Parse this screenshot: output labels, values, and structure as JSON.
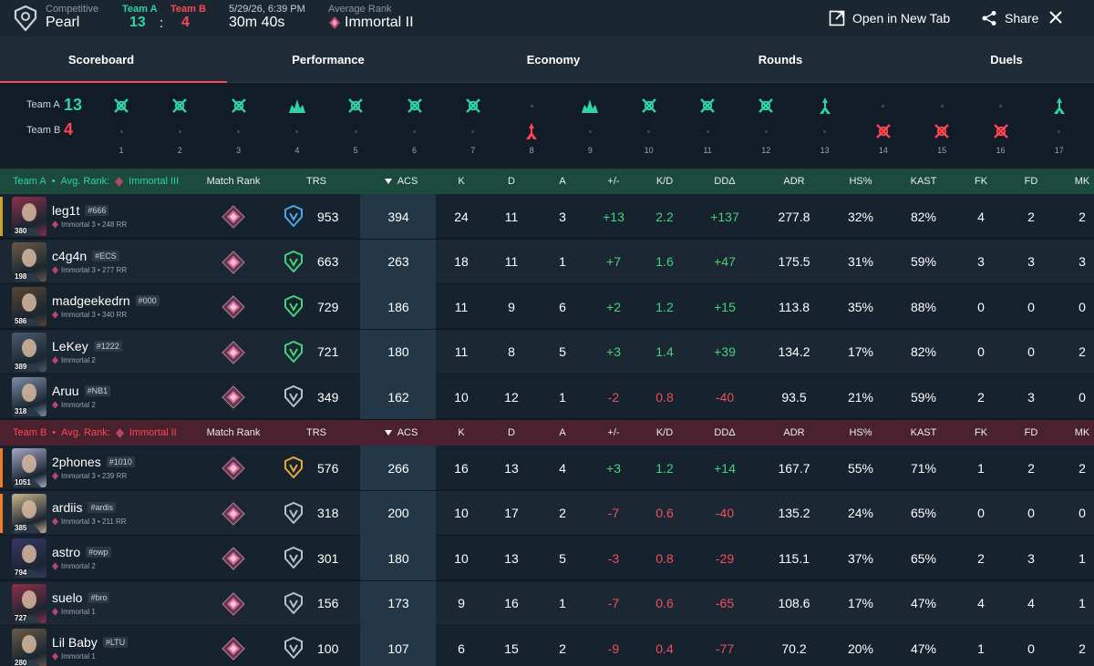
{
  "header": {
    "mode": "Competitive",
    "map": "Pearl",
    "team_a_label": "Team A",
    "team_b_label": "Team B",
    "team_a_score": "13",
    "team_b_score": "4",
    "separator": ":",
    "date": "5/29/26, 6:39 PM",
    "duration": "30m 40s",
    "avg_rank_label": "Average Rank",
    "avg_rank": "Immortal II",
    "open_new_tab": "Open in New Tab",
    "share": "Share"
  },
  "tabs": [
    "Scoreboard",
    "Performance",
    "Economy",
    "Rounds",
    "Duels"
  ],
  "timeline": {
    "team_a_label": "Team A",
    "team_a_score": "13",
    "team_b_label": "Team B",
    "team_b_score": "4",
    "rounds": [
      {
        "n": "1",
        "winner": "A",
        "icon": "defuse-icon"
      },
      {
        "n": "2",
        "winner": "A",
        "icon": "defuse-icon"
      },
      {
        "n": "3",
        "winner": "A",
        "icon": "defuse-icon"
      },
      {
        "n": "4",
        "winner": "A",
        "icon": "elimination-icon"
      },
      {
        "n": "5",
        "winner": "A",
        "icon": "defuse-icon"
      },
      {
        "n": "6",
        "winner": "A",
        "icon": "defuse-icon"
      },
      {
        "n": "7",
        "winner": "A",
        "icon": "defuse-icon"
      },
      {
        "n": "8",
        "winner": "B",
        "icon": "detonate-icon"
      },
      {
        "n": "9",
        "winner": "A",
        "icon": "elimination-icon"
      },
      {
        "n": "10",
        "winner": "A",
        "icon": "defuse-icon"
      },
      {
        "n": "11",
        "winner": "A",
        "icon": "defuse-icon"
      },
      {
        "n": "12",
        "winner": "A",
        "icon": "defuse-icon"
      },
      {
        "n": "13",
        "winner": "A",
        "icon": "detonate-icon"
      },
      {
        "n": "14",
        "winner": "B",
        "icon": "defuse-icon"
      },
      {
        "n": "15",
        "winner": "B",
        "icon": "defuse-icon"
      },
      {
        "n": "16",
        "winner": "B",
        "icon": "defuse-icon"
      },
      {
        "n": "17",
        "winner": "A",
        "icon": "detonate-icon"
      }
    ]
  },
  "columns": [
    "Match Rank",
    "TRS",
    "ACS",
    "K",
    "D",
    "A",
    "+/-",
    "K/D",
    "DDΔ",
    "ADR",
    "HS%",
    "KAST",
    "FK",
    "FD",
    "MK"
  ],
  "team_a": {
    "label": "Team A",
    "avg_prefix": "Avg. Rank:",
    "avg_rank": "Immortal III",
    "color": "#2fd3a4",
    "players": [
      {
        "name": "leg1t",
        "tag": "#666",
        "rank": "Immortal 3 • 248 RR",
        "level": "380",
        "trs": "953",
        "trs_color": "#4aa8e8",
        "acs": "394",
        "k": "24",
        "d": "11",
        "a": "3",
        "pm": "+13",
        "kd": "2.2",
        "dd": "+137",
        "adr": "277.8",
        "hs": "32%",
        "kast": "82%",
        "fk": "4",
        "fd": "2",
        "mk": "2",
        "accent": "#c9a227",
        "av": "#8e2f4a"
      },
      {
        "name": "c4g4n",
        "tag": "#ECS",
        "rank": "Immortal 3 • 277 RR",
        "level": "198",
        "trs": "663",
        "trs_color": "#46d27a",
        "acs": "263",
        "k": "18",
        "d": "11",
        "a": "1",
        "pm": "+7",
        "kd": "1.6",
        "dd": "+47",
        "adr": "175.5",
        "hs": "31%",
        "kast": "59%",
        "fk": "3",
        "fd": "3",
        "mk": "3",
        "av": "#6b5a48"
      },
      {
        "name": "madgeekedrn",
        "tag": "#000",
        "rank": "Immortal 3 • 340 RR",
        "level": "586",
        "trs": "729",
        "trs_color": "#46d27a",
        "acs": "186",
        "k": "11",
        "d": "9",
        "a": "6",
        "pm": "+2",
        "kd": "1.2",
        "dd": "+15",
        "adr": "113.8",
        "hs": "35%",
        "kast": "88%",
        "fk": "0",
        "fd": "0",
        "mk": "0",
        "av": "#5a4636"
      },
      {
        "name": "LeKey",
        "tag": "#1222",
        "rank": "Immortal 2",
        "level": "389",
        "trs": "721",
        "trs_color": "#46d27a",
        "acs": "180",
        "k": "11",
        "d": "8",
        "a": "5",
        "pm": "+3",
        "kd": "1.4",
        "dd": "+39",
        "adr": "134.2",
        "hs": "17%",
        "kast": "82%",
        "fk": "0",
        "fd": "0",
        "mk": "2",
        "av": "#4b5a6e"
      },
      {
        "name": "Aruu",
        "tag": "#NB1",
        "rank": "Immortal 2",
        "level": "318",
        "trs": "349",
        "trs_color": "#b8c2cc",
        "acs": "162",
        "k": "10",
        "d": "12",
        "a": "1",
        "pm": "-2",
        "kd": "0.8",
        "dd": "-40",
        "adr": "93.5",
        "hs": "21%",
        "kast": "59%",
        "fk": "2",
        "fd": "3",
        "mk": "0",
        "av": "#7c8ea8"
      }
    ]
  },
  "team_b": {
    "label": "Team B",
    "avg_prefix": "Avg. Rank:",
    "avg_rank": "Immortal II",
    "color": "#ff4655",
    "players": [
      {
        "name": "2phones",
        "tag": "#1010",
        "rank": "Immortal 3 • 239 RR",
        "level": "1051",
        "trs": "576",
        "trs_color": "#e8a93a",
        "acs": "266",
        "k": "16",
        "d": "13",
        "a": "4",
        "pm": "+3",
        "kd": "1.2",
        "dd": "+14",
        "adr": "167.7",
        "hs": "55%",
        "kast": "71%",
        "fk": "1",
        "fd": "2",
        "mk": "2",
        "accent": "#f47b20",
        "av": "#a8a8c8"
      },
      {
        "name": "ardiis",
        "tag": "#ardis",
        "rank": "Immortal 3 • 211 RR",
        "level": "385",
        "trs": "318",
        "trs_color": "#b8c2cc",
        "acs": "200",
        "k": "10",
        "d": "17",
        "a": "2",
        "pm": "-7",
        "kd": "0.6",
        "dd": "-40",
        "adr": "135.2",
        "hs": "24%",
        "kast": "65%",
        "fk": "0",
        "fd": "0",
        "mk": "0",
        "accent": "#f47b20",
        "av": "#c8b48e"
      },
      {
        "name": "astro",
        "tag": "#owp",
        "rank": "Immortal 2",
        "level": "794",
        "trs": "301",
        "trs_color": "#b8c2cc",
        "acs": "180",
        "k": "10",
        "d": "13",
        "a": "5",
        "pm": "-3",
        "kd": "0.8",
        "dd": "-29",
        "adr": "115.1",
        "hs": "37%",
        "kast": "65%",
        "fk": "2",
        "fd": "3",
        "mk": "1",
        "av": "#3a3568"
      },
      {
        "name": "suelo",
        "tag": "#bro",
        "rank": "Immortal 1",
        "level": "727",
        "trs": "156",
        "trs_color": "#b8c2cc",
        "acs": "173",
        "k": "9",
        "d": "16",
        "a": "1",
        "pm": "-7",
        "kd": "0.6",
        "dd": "-65",
        "adr": "108.6",
        "hs": "17%",
        "kast": "47%",
        "fk": "4",
        "fd": "4",
        "mk": "1",
        "av": "#8e2f4a"
      },
      {
        "name": "Lil Baby",
        "tag": "#LTU",
        "rank": "Immortal 1",
        "level": "280",
        "trs": "100",
        "trs_color": "#b8c2cc",
        "acs": "107",
        "k": "6",
        "d": "15",
        "a": "2",
        "pm": "-9",
        "kd": "0.4",
        "dd": "-77",
        "adr": "70.2",
        "hs": "20%",
        "kast": "47%",
        "fk": "1",
        "fd": "0",
        "mk": "2",
        "av": "#6b5a48"
      }
    ]
  },
  "colors": {
    "team_a": "#2fd3a4",
    "team_b": "#ff4655",
    "positive": "#46d27a",
    "negative": "#ef4f5c",
    "accent_tab": "#ff4655"
  }
}
